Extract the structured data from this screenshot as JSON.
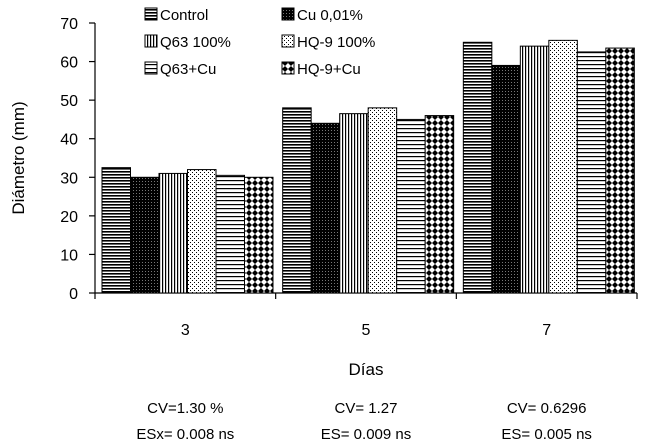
{
  "chart_data": {
    "type": "bar",
    "title": "",
    "xlabel": "Días",
    "ylabel": "Diámetro (mm)",
    "ylim": [
      0,
      70
    ],
    "yticks": [
      0,
      10,
      20,
      30,
      40,
      50,
      60,
      70
    ],
    "categories": [
      "3",
      "5",
      "7"
    ],
    "series": [
      {
        "name": "Control",
        "values": [
          32.5,
          48.0,
          65.0
        ],
        "pattern": "hlines"
      },
      {
        "name": "Cu 0,01%",
        "values": [
          30.0,
          44.0,
          59.0
        ],
        "pattern": "dense"
      },
      {
        "name": "Q63 100%",
        "values": [
          31.0,
          46.5,
          64.0
        ],
        "pattern": "vlines"
      },
      {
        "name": "HQ-9 100%",
        "values": [
          32.0,
          48.0,
          65.5
        ],
        "pattern": "dots"
      },
      {
        "name": "Q63+Cu",
        "values": [
          30.5,
          45.0,
          62.5
        ],
        "pattern": "hlines-wide"
      },
      {
        "name": "HQ-9+Cu",
        "values": [
          30.0,
          46.0,
          63.5
        ],
        "pattern": "checker"
      }
    ],
    "legend_position": "top-left",
    "grid": false,
    "annotations": [
      {
        "line1": "CV=1.30 %",
        "line2": "ESx= 0.008 ns"
      },
      {
        "line1": "CV= 1.27",
        "line2": "ES= 0.009 ns"
      },
      {
        "line1": "CV= 0.6296",
        "line2": "ES= 0.005 ns"
      }
    ]
  }
}
